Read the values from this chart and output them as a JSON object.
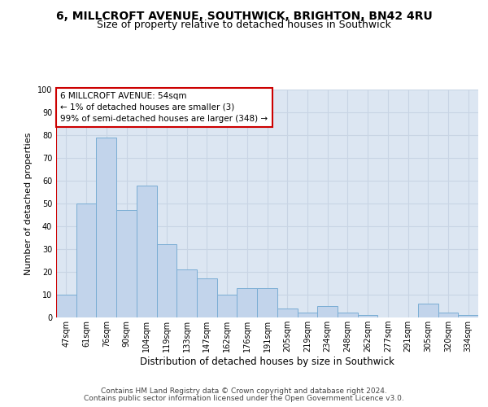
{
  "title1": "6, MILLCROFT AVENUE, SOUTHWICK, BRIGHTON, BN42 4RU",
  "title2": "Size of property relative to detached houses in Southwick",
  "xlabel": "Distribution of detached houses by size in Southwick",
  "ylabel": "Number of detached properties",
  "bar_labels": [
    "47sqm",
    "61sqm",
    "76sqm",
    "90sqm",
    "104sqm",
    "119sqm",
    "133sqm",
    "147sqm",
    "162sqm",
    "176sqm",
    "191sqm",
    "205sqm",
    "219sqm",
    "234sqm",
    "248sqm",
    "262sqm",
    "277sqm",
    "291sqm",
    "305sqm",
    "320sqm",
    "334sqm"
  ],
  "bar_values": [
    10,
    50,
    79,
    47,
    58,
    32,
    21,
    17,
    10,
    13,
    13,
    4,
    2,
    5,
    2,
    1,
    0,
    0,
    6,
    2,
    1
  ],
  "bar_color": "#c2d4eb",
  "bar_edgecolor": "#7aadd4",
  "red_line_color": "#cc0000",
  "annotation_line1": "6 MILLCROFT AVENUE: 54sqm",
  "annotation_line2": "← 1% of detached houses are smaller (3)",
  "annotation_line3": "99% of semi-detached houses are larger (348) →",
  "annotation_box_color": "#ffffff",
  "annotation_border_color": "#cc0000",
  "ylim": [
    0,
    100
  ],
  "yticks": [
    0,
    10,
    20,
    30,
    40,
    50,
    60,
    70,
    80,
    90,
    100
  ],
  "grid_color": "#c8d4e4",
  "bg_color": "#dce6f2",
  "footer1": "Contains HM Land Registry data © Crown copyright and database right 2024.",
  "footer2": "Contains public sector information licensed under the Open Government Licence v3.0.",
  "title_fontsize": 10,
  "subtitle_fontsize": 9,
  "ylabel_fontsize": 8,
  "xlabel_fontsize": 8.5,
  "tick_fontsize": 7,
  "annotation_fontsize": 7.5,
  "footer_fontsize": 6.5
}
